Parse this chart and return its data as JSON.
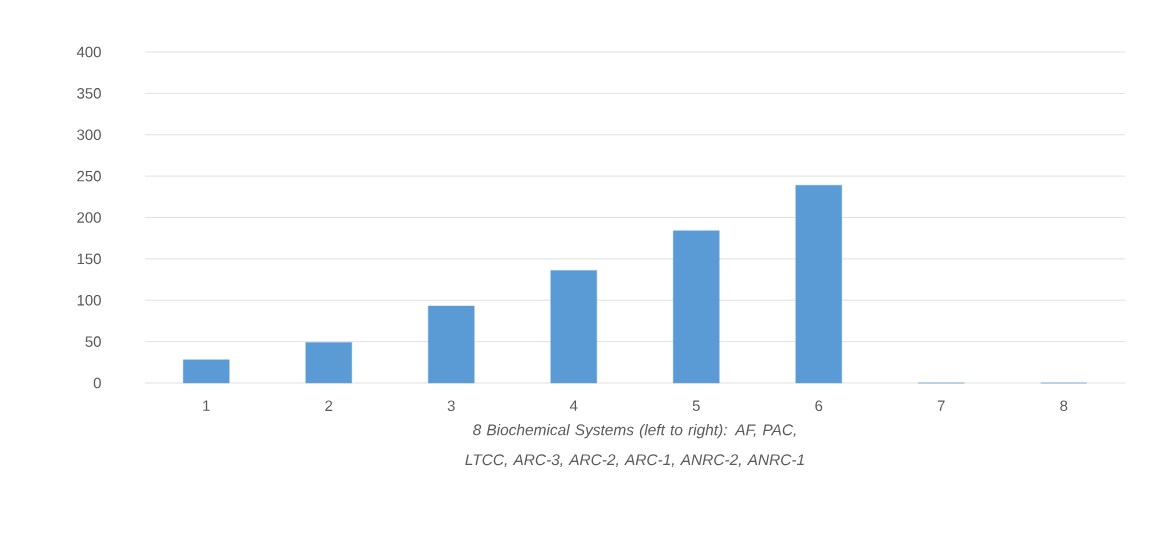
{
  "chart_data": {
    "type": "bar",
    "xlabel": "8 Biochemical Systems (left to right): AF, PAC, LTCC, ARC-3, ARC-2, ARC-1, ANRC-2, ANRC-1",
    "categories": [
      "1",
      "2",
      "3",
      "4",
      "5",
      "6",
      "7",
      "8"
    ],
    "values": [
      28,
      49,
      93,
      136,
      184,
      239,
      0,
      0
    ],
    "color": "#5b9bd5",
    "ylim": [
      0,
      400
    ],
    "yticks": [
      0,
      50,
      100,
      150,
      200,
      250,
      300,
      350,
      400
    ],
    "grid": "y"
  }
}
